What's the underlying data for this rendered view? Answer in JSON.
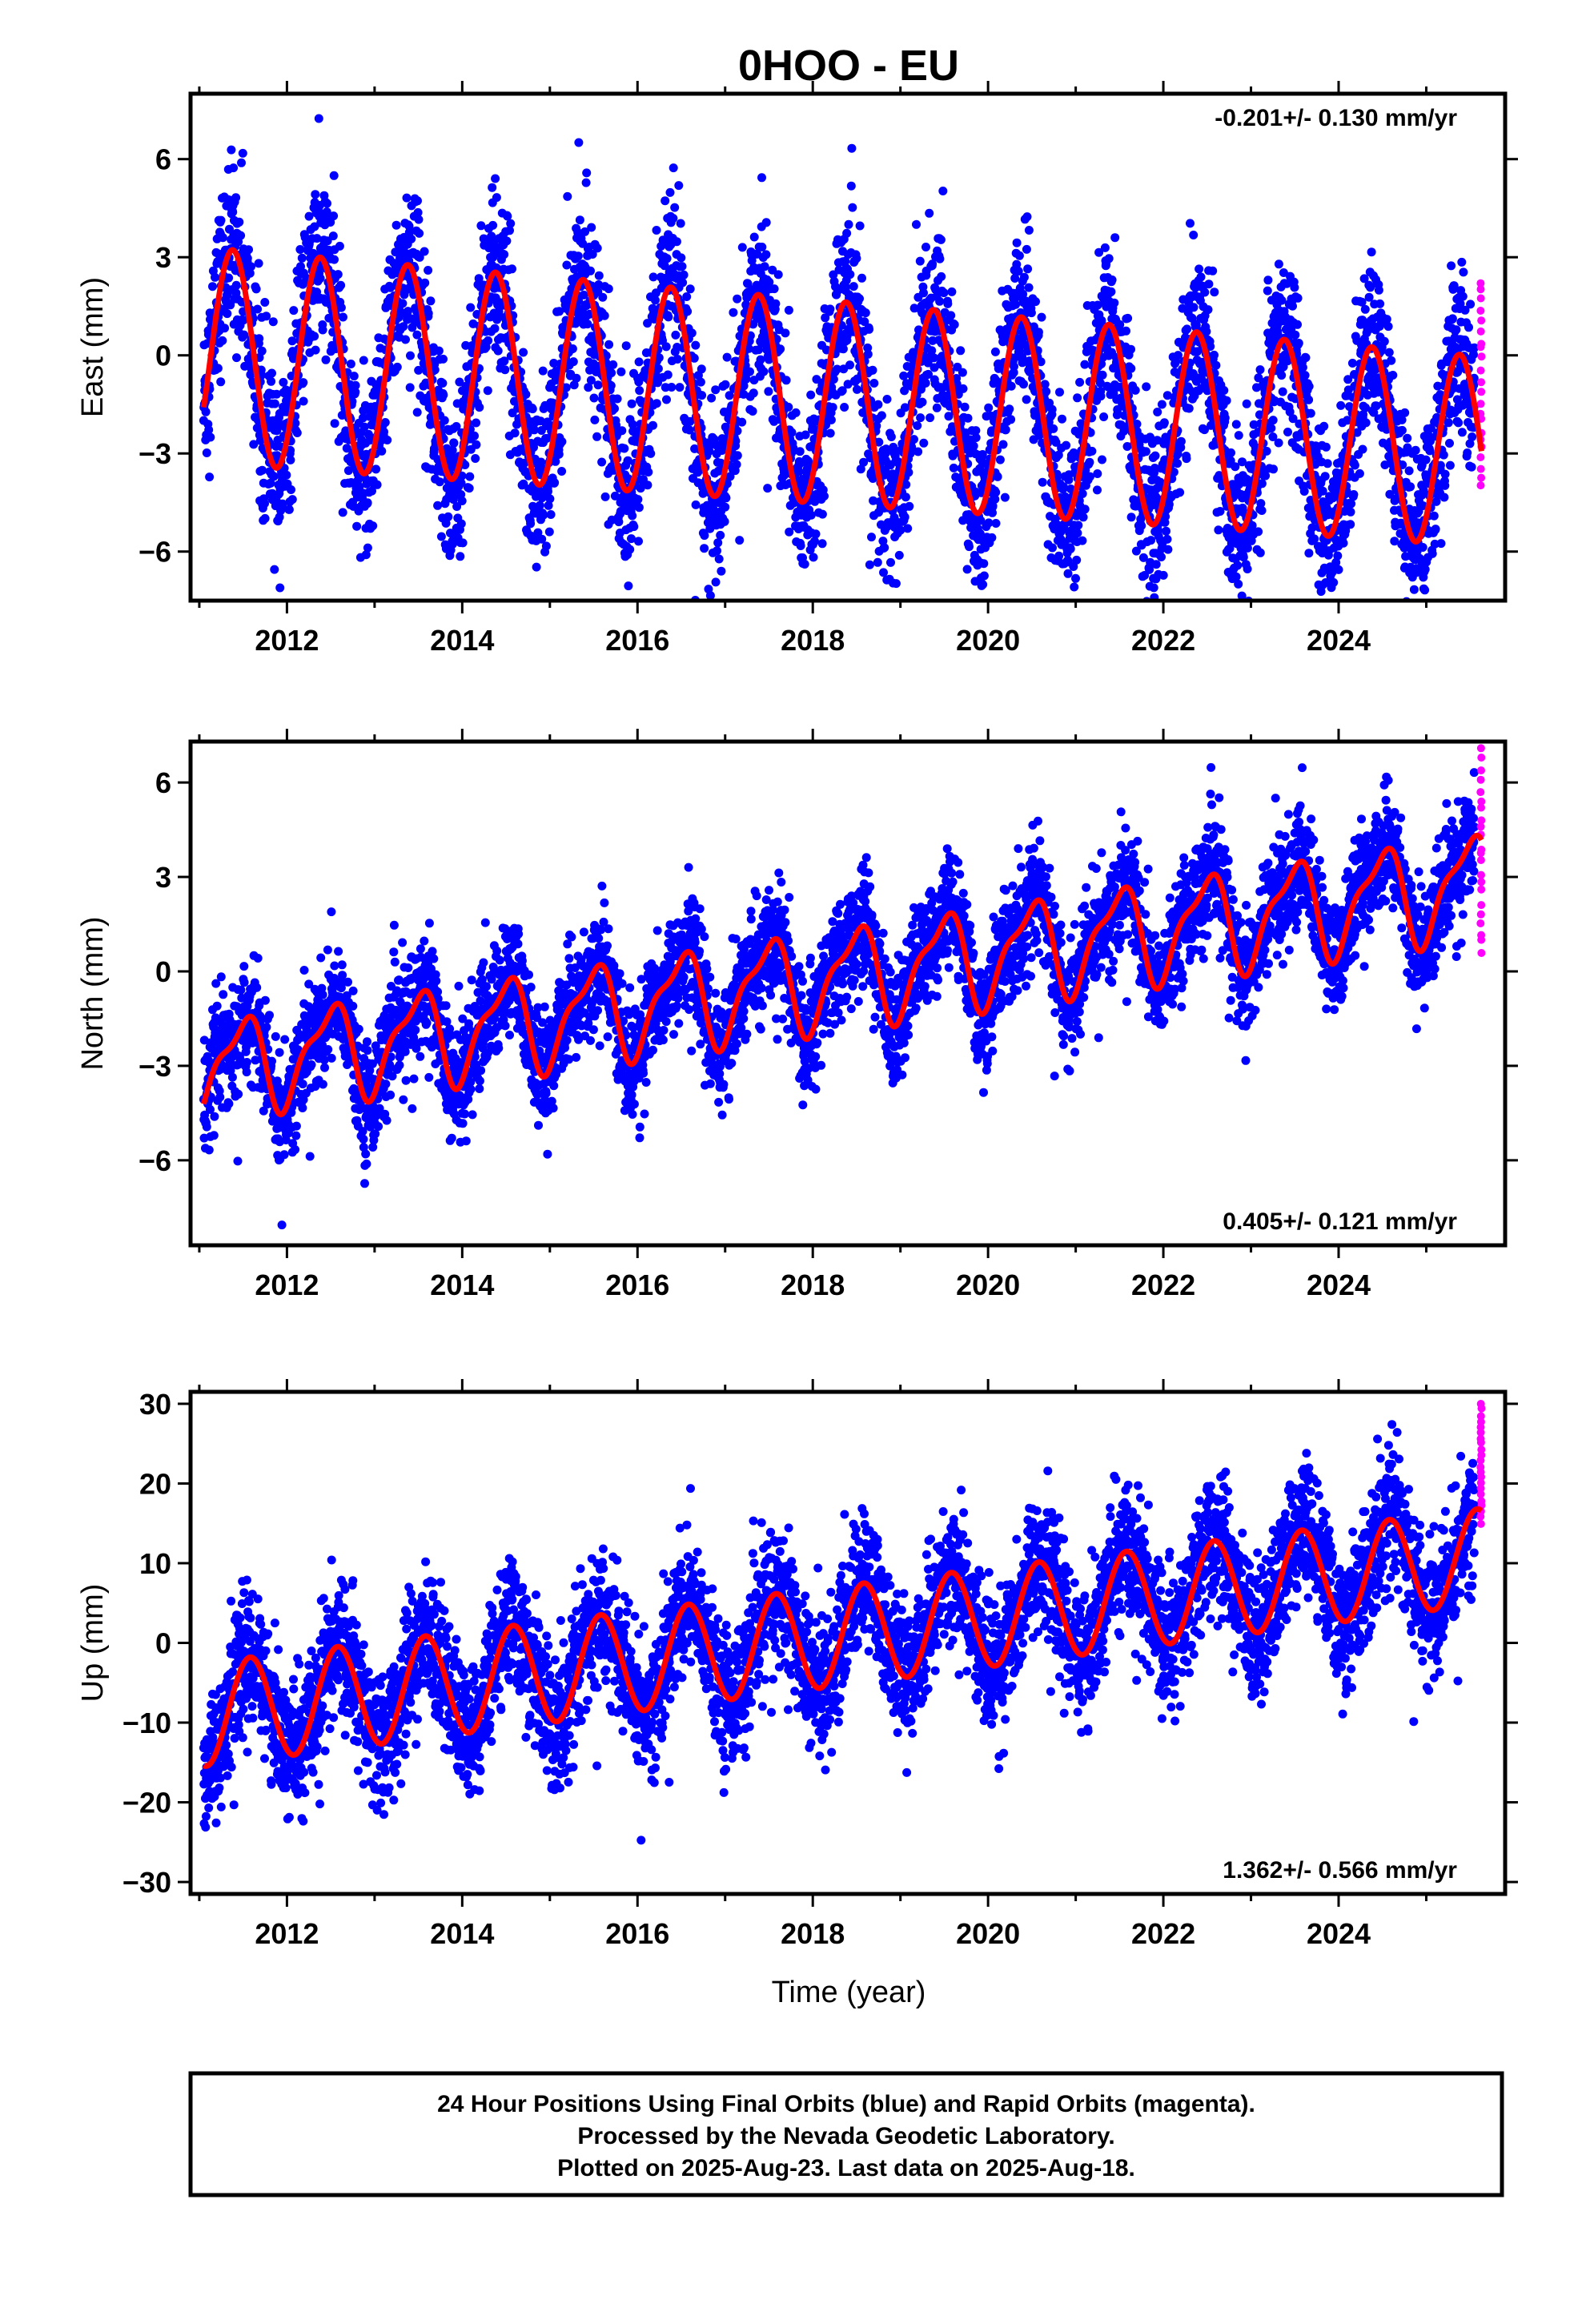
{
  "chart_data": {
    "type": "scatter",
    "title": "0HOO - EU",
    "xlabel": "Time (year)",
    "xlim": [
      2010.9,
      2025.9
    ],
    "x_tick_labels": [
      2012,
      2014,
      2016,
      2018,
      2020,
      2022,
      2024
    ],
    "legend_colors": {
      "final_orbits": "#0000ff",
      "rapid_orbits": "#ff00ff",
      "model": "#ff0000"
    },
    "grid": false,
    "data_start": 2011.05,
    "data_end": 2025.63,
    "rapid_start": 2025.55,
    "panels": [
      {
        "component": "east",
        "ylabel": "East (mm)",
        "ylim": [
          -7.5,
          8.0
        ],
        "y_ticks": [
          6,
          3,
          0,
          -3,
          -6
        ],
        "rate_text": "-0.201+/- 0.130 mm/yr",
        "rate_position": "top-right",
        "model": {
          "offset": 0.0,
          "rate": -0.201,
          "annual_amp_start": 3.3,
          "annual_amp_end": 2.9,
          "annual_peak": 0.38,
          "semiannual_amp": 0.0,
          "semiannual_phase": 0.0
        },
        "noise_sd": 1.3,
        "rapid_range": [
          -4.0,
          2.2
        ]
      },
      {
        "component": "north",
        "ylabel": "North (mm)",
        "ylim": [
          -8.7,
          7.3
        ],
        "y_ticks": [
          6,
          3,
          0,
          -3,
          -6
        ],
        "rate_text": "0.405+/- 0.121 mm/yr",
        "rate_position": "bottom-right",
        "model": {
          "offset": -3.1,
          "rate": 0.405,
          "annual_amp_start": 1.4,
          "annual_amp_end": 1.5,
          "annual_peak": 0.48,
          "semiannual_amp": 0.5,
          "semiannual_phase": 0.15
        },
        "noise_sd": 0.9,
        "rapid_range": [
          0.7,
          7.0
        ]
      },
      {
        "component": "up",
        "ylabel": "Up (mm)",
        "ylim": [
          -31.5,
          31.5
        ],
        "y_ticks": [
          30,
          20,
          10,
          0,
          -10,
          -20,
          -30
        ],
        "rate_text": "1.362+/- 0.566 mm/yr",
        "rate_position": "bottom-right",
        "model": {
          "offset": -9.0,
          "rate": 1.362,
          "annual_amp_start": 6.5,
          "annual_amp_end": 6.0,
          "annual_peak": 0.58,
          "semiannual_amp": 0.0,
          "semiannual_phase": 0.0
        },
        "noise_sd": 4.2,
        "rapid_range": [
          15.0,
          30.0
        ]
      }
    ]
  },
  "footer": {
    "line1": "24 Hour Positions Using Final Orbits (blue) and Rapid Orbits (magenta).",
    "line2": "Processed by the Nevada Geodetic Laboratory.",
    "line3": "Plotted on 2025-Aug-23. Last data on 2025-Aug-18."
  }
}
